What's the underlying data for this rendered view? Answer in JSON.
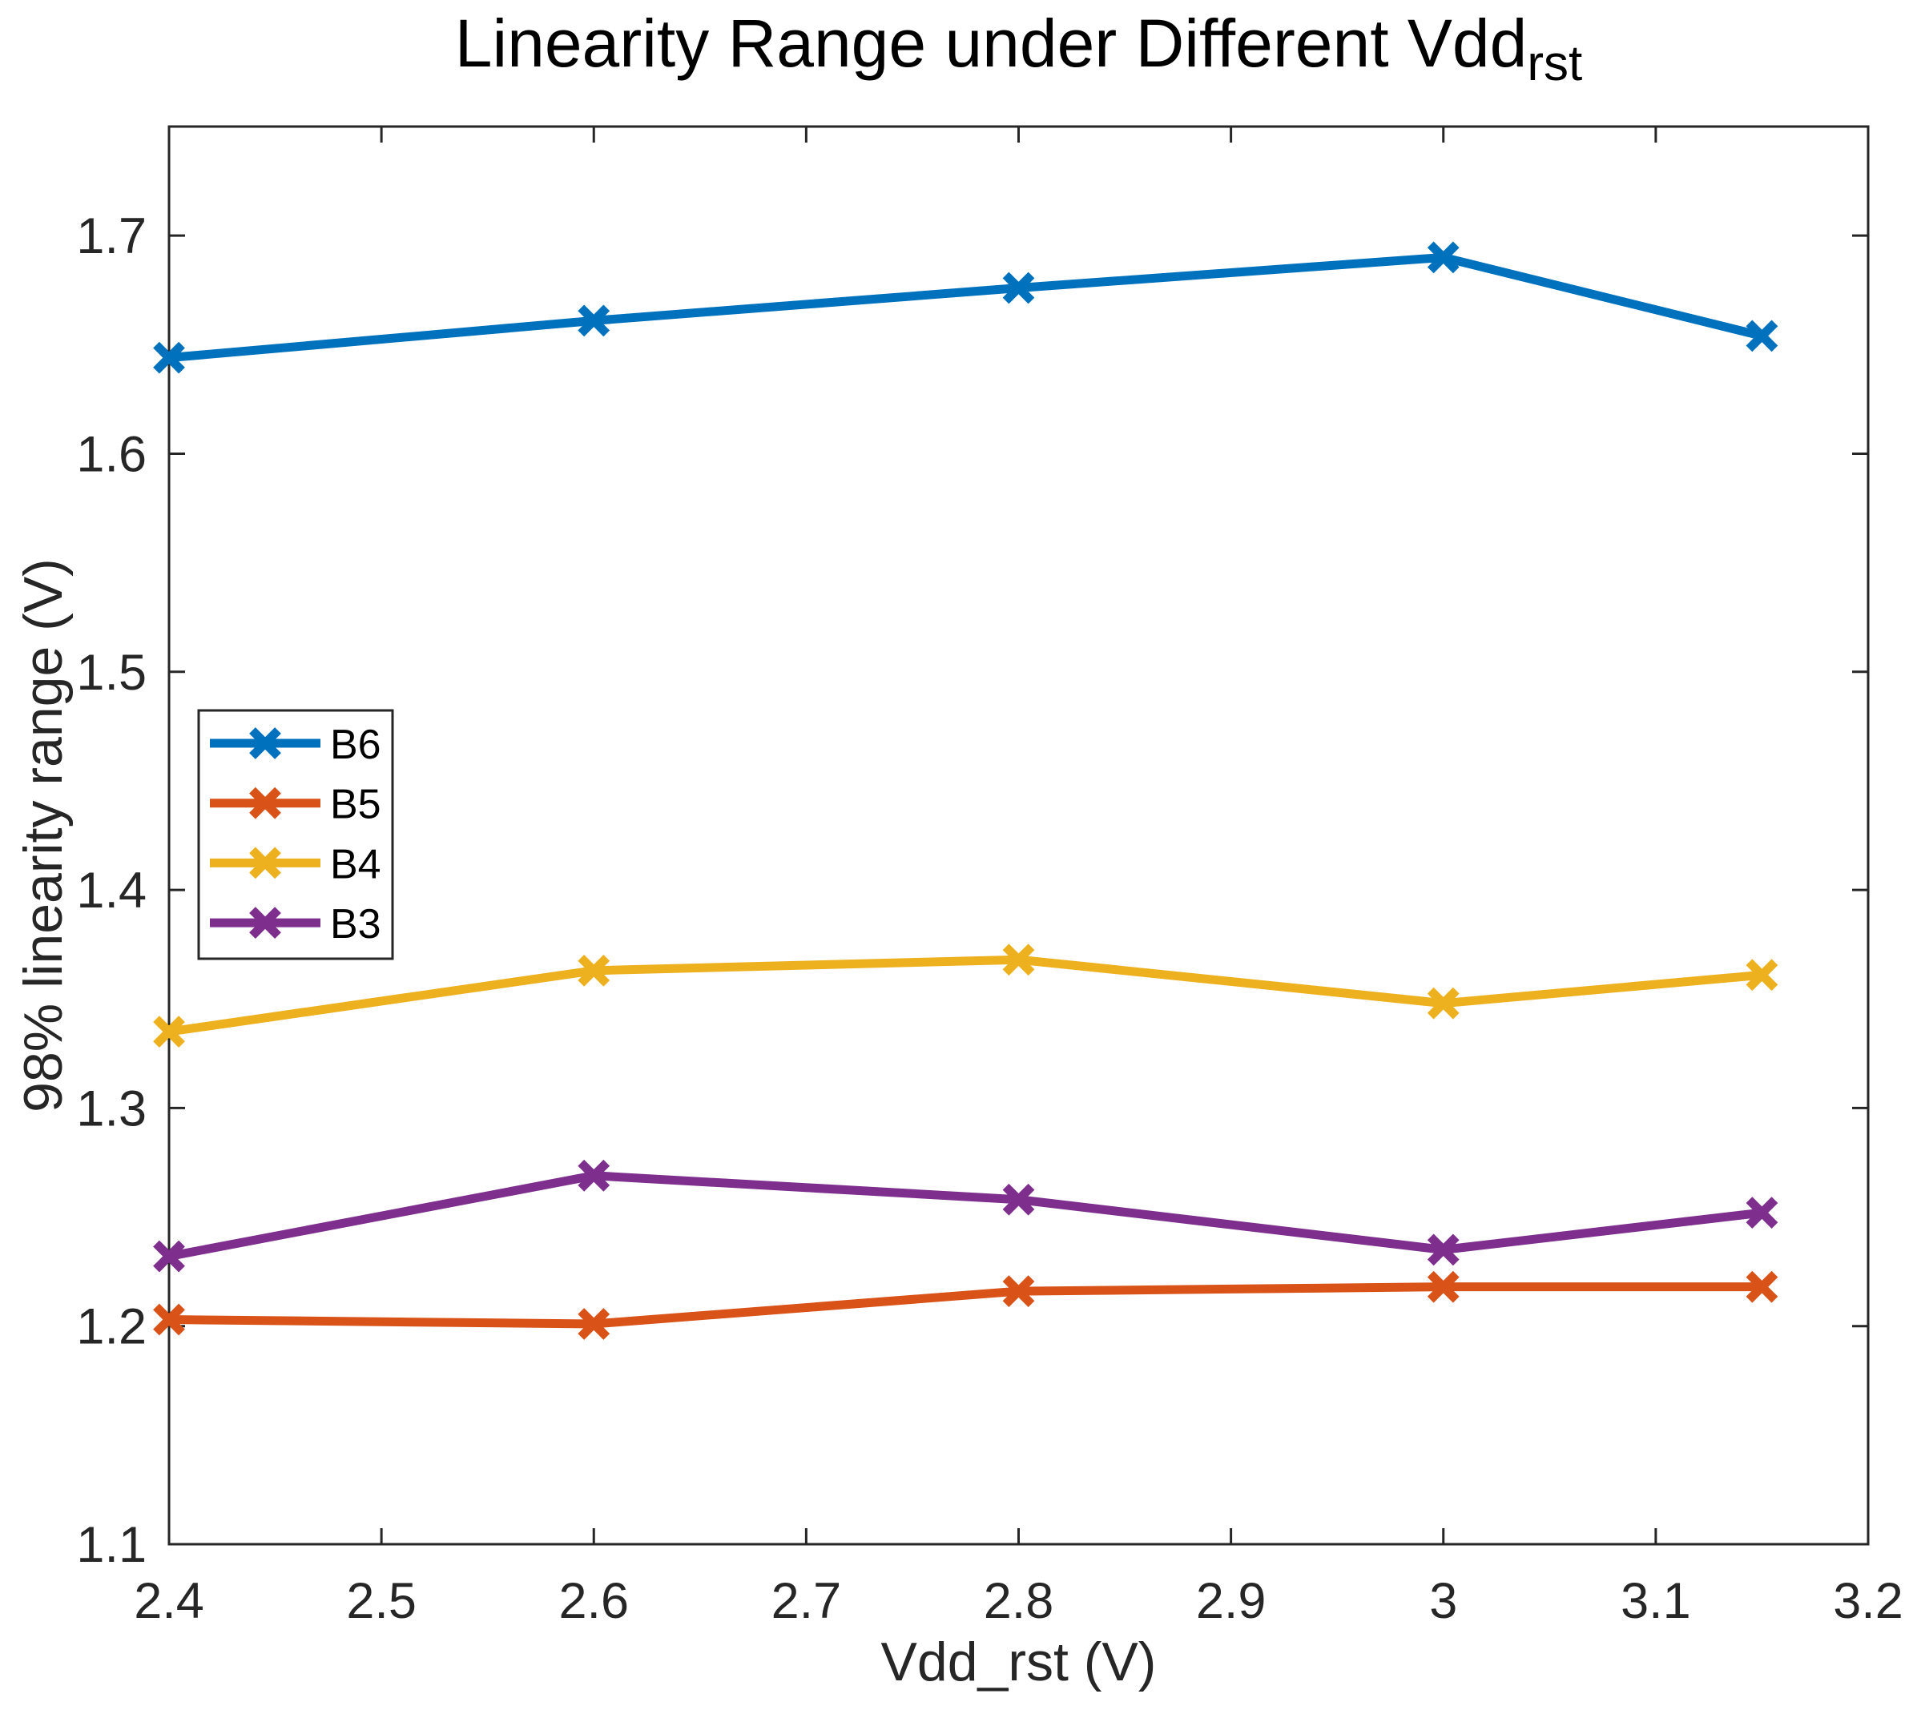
{
  "figure": {
    "title_main": "Linearity Range under Different Vdd",
    "title_sub": "rst",
    "xlabel": "Vdd_rst (V)",
    "ylabel": "98% linearity range (V)"
  },
  "chart_data": {
    "type": "line",
    "title": "Linearity Range under Different Vdd_rst",
    "xlabel": "Vdd_rst (V)",
    "ylabel": "98% linearity range (V)",
    "x": [
      2.4,
      2.6,
      2.8,
      3.0,
      3.15
    ],
    "series": [
      {
        "name": "B6",
        "color": "#0072BD",
        "values": [
          1.644,
          1.661,
          1.676,
          1.69,
          1.654
        ]
      },
      {
        "name": "B5",
        "color": "#D95319",
        "values": [
          1.203,
          1.201,
          1.216,
          1.218,
          1.218
        ]
      },
      {
        "name": "B4",
        "color": "#EDB120",
        "values": [
          1.335,
          1.363,
          1.368,
          1.348,
          1.361
        ]
      },
      {
        "name": "B3",
        "color": "#7E2F8E",
        "values": [
          1.232,
          1.269,
          1.258,
          1.235,
          1.252
        ]
      }
    ],
    "marker": "x",
    "xlim": [
      2.4,
      3.2
    ],
    "ylim": [
      1.1,
      1.75
    ],
    "x_ticks": {
      "values": [
        2.4,
        2.5,
        2.6,
        2.7,
        2.8,
        2.9,
        3.0,
        3.1,
        3.2
      ],
      "labels": [
        "2.4",
        "2.5",
        "2.6",
        "2.7",
        "2.8",
        "2.9",
        "3",
        "3.1",
        "3.2"
      ]
    },
    "y_ticks": {
      "values": [
        1.1,
        1.2,
        1.3,
        1.4,
        1.5,
        1.6,
        1.7
      ],
      "labels": [
        "1.1",
        "1.2",
        "1.3",
        "1.4",
        "1.5",
        "1.6",
        "1.7"
      ]
    },
    "grid": false,
    "axis_color": "#262626",
    "legend": {
      "entries": [
        "B6",
        "B5",
        "B4",
        "B3"
      ],
      "position": "middle-left"
    }
  }
}
